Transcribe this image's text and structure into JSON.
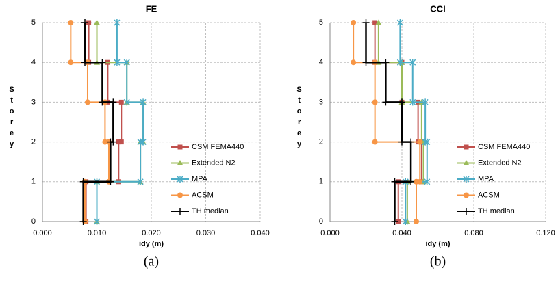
{
  "chart_data": [
    {
      "type": "step",
      "title": "FE",
      "caption": "(a)",
      "xlabel": "idy (m)",
      "ylabel": "Storey",
      "levels": [
        0,
        1,
        2,
        3,
        4,
        5
      ],
      "xlim": [
        0,
        0.04
      ],
      "xticks": [
        {
          "value": 0,
          "label": "0.000"
        },
        {
          "value": 0.01,
          "label": "0.010"
        },
        {
          "value": 0.02,
          "label": "0.020"
        },
        {
          "value": 0.03,
          "label": "0.030"
        },
        {
          "value": 0.04,
          "label": "0.040"
        }
      ],
      "ylim": [
        0,
        5
      ],
      "yticks": [
        0,
        1,
        2,
        3,
        4,
        5
      ],
      "grid": true,
      "series": [
        {
          "name": "CSM FEMA440",
          "color": "#c0504d",
          "marker": "square",
          "values": [
            0.008,
            0.014,
            0.0145,
            0.012,
            0.0085
          ]
        },
        {
          "name": "Extended N2",
          "color": "#9bbb59",
          "marker": "triangle",
          "values": [
            0.01,
            0.018,
            0.0185,
            0.0155,
            0.01
          ]
        },
        {
          "name": "MPA",
          "color": "#4bacc6",
          "marker": "asterisk",
          "values": [
            0.01,
            0.018,
            0.0185,
            0.0155,
            0.0137
          ]
        },
        {
          "name": "ACSM",
          "color": "#f79646",
          "marker": "circle",
          "values": [
            0.0078,
            0.0122,
            0.0115,
            0.0083,
            0.0052
          ]
        },
        {
          "name": "TH median",
          "color": "#000000",
          "marker": "plus",
          "values": [
            0.0075,
            0.0125,
            0.013,
            0.011,
            0.0078
          ]
        }
      ]
    },
    {
      "type": "step",
      "title": "CCI",
      "caption": "(b)",
      "xlabel": "idy (m)",
      "ylabel": "Storey",
      "levels": [
        0,
        1,
        2,
        3,
        4,
        5
      ],
      "xlim": [
        0,
        0.12
      ],
      "xticks": [
        {
          "value": 0,
          "label": "0.000"
        },
        {
          "value": 0.04,
          "label": "0.040"
        },
        {
          "value": 0.08,
          "label": "0.080"
        },
        {
          "value": 0.12,
          "label": "0.120"
        }
      ],
      "ylim": [
        0,
        5
      ],
      "yticks": [
        0,
        1,
        2,
        3,
        4,
        5
      ],
      "grid": true,
      "series": [
        {
          "name": "CSM FEMA440",
          "color": "#c0504d",
          "marker": "square",
          "values": [
            0.038,
            0.051,
            0.049,
            0.04,
            0.025
          ]
        },
        {
          "name": "Extended N2",
          "color": "#9bbb59",
          "marker": "triangle",
          "values": [
            0.043,
            0.052,
            0.051,
            0.04,
            0.027
          ]
        },
        {
          "name": "MPA",
          "color": "#4bacc6",
          "marker": "asterisk",
          "values": [
            0.042,
            0.054,
            0.053,
            0.046,
            0.039
          ]
        },
        {
          "name": "ACSM",
          "color": "#f79646",
          "marker": "circle",
          "values": [
            0.048,
            0.05,
            0.025,
            0.025,
            0.013
          ]
        },
        {
          "name": "TH median",
          "color": "#000000",
          "marker": "plus",
          "values": [
            0.036,
            0.045,
            0.04,
            0.031,
            0.02
          ]
        }
      ]
    }
  ]
}
